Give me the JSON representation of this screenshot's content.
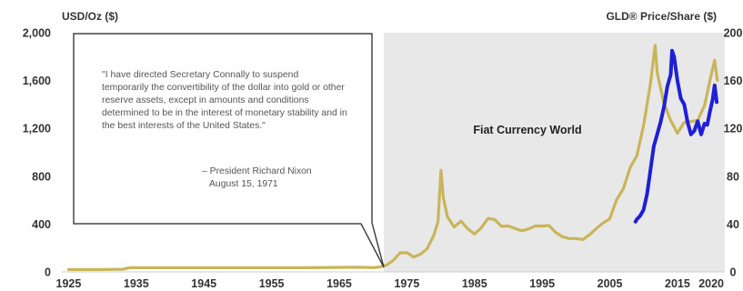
{
  "colors": {
    "gold": "#c9b55a",
    "gld": "#1f1fd6",
    "shade": "#e8e8e8",
    "box_border": "#3a3a3a",
    "text": "#333333"
  },
  "quote": {
    "text": "\"I have directed Secretary Connally to suspend temporarily the convertibility of the dollar into gold or other reserve assets, except in amounts and conditions determined to be in the interest of monetary stability and in the best interests of the United States.\"",
    "author": "– President Richard Nixon",
    "date": "August 15, 1971"
  },
  "chart_data": {
    "type": "line",
    "ylabel_left": "USD/Oz ($)",
    "ylabel_right": "GLD® Price/Share ($)",
    "xlim": [
      1924,
      2022
    ],
    "ylim": [
      0,
      2000
    ],
    "ylim_right": [
      0,
      200
    ],
    "x_ticks": [
      1925,
      1935,
      1945,
      1955,
      1965,
      1975,
      1985,
      1995,
      2005,
      2015,
      2020
    ],
    "y_ticks_left": [
      "0",
      "400",
      "800",
      "1,200",
      "1,600",
      "2,000"
    ],
    "y_ticks_right": [
      "0",
      "40",
      "80",
      "120",
      "160",
      "200"
    ],
    "annotation": "Fiat Currency World",
    "shaded_region": [
      1971.6,
      2022
    ],
    "series": [
      {
        "color": "gold",
        "points": [
          [
            1925,
            20
          ],
          [
            1930,
            20
          ],
          [
            1933,
            22
          ],
          [
            1934,
            35
          ],
          [
            1940,
            35
          ],
          [
            1950,
            35
          ],
          [
            1960,
            35
          ],
          [
            1968,
            39
          ],
          [
            1970,
            36
          ],
          [
            1971,
            41
          ],
          [
            1972,
            58
          ],
          [
            1973,
            97
          ],
          [
            1974,
            159
          ],
          [
            1975,
            161
          ],
          [
            1976,
            125
          ],
          [
            1977,
            148
          ],
          [
            1978,
            193
          ],
          [
            1979,
            307
          ],
          [
            1979.6,
            420
          ],
          [
            1980.05,
            850
          ],
          [
            1980.4,
            620
          ],
          [
            1981,
            460
          ],
          [
            1982,
            376
          ],
          [
            1983,
            424
          ],
          [
            1984,
            361
          ],
          [
            1985,
            317
          ],
          [
            1986,
            368
          ],
          [
            1987,
            447
          ],
          [
            1988,
            437
          ],
          [
            1989,
            381
          ],
          [
            1990,
            384
          ],
          [
            1991,
            362
          ],
          [
            1992,
            344
          ],
          [
            1993,
            360
          ],
          [
            1994,
            384
          ],
          [
            1995,
            384
          ],
          [
            1996,
            388
          ],
          [
            1997,
            331
          ],
          [
            1998,
            294
          ],
          [
            1999,
            279
          ],
          [
            2000,
            279
          ],
          [
            2001,
            271
          ],
          [
            2002,
            310
          ],
          [
            2003,
            363
          ],
          [
            2004,
            409
          ],
          [
            2005,
            444
          ],
          [
            2006,
            603
          ],
          [
            2007,
            695
          ],
          [
            2008,
            872
          ],
          [
            2009,
            972
          ],
          [
            2010,
            1225
          ],
          [
            2011,
            1572
          ],
          [
            2011.7,
            1895
          ],
          [
            2012,
            1669
          ],
          [
            2013,
            1411
          ],
          [
            2014,
            1266
          ],
          [
            2015,
            1160
          ],
          [
            2016,
            1251
          ],
          [
            2017,
            1257
          ],
          [
            2018,
            1268
          ],
          [
            2019,
            1392
          ],
          [
            2019.8,
            1600
          ],
          [
            2020.5,
            1770
          ],
          [
            2020.9,
            1600
          ]
        ]
      },
      {
        "color": "gld",
        "points": [
          [
            2008.8,
            420
          ],
          [
            2009,
            440
          ],
          [
            2009.5,
            470
          ],
          [
            2010,
            520
          ],
          [
            2010.5,
            650
          ],
          [
            2011,
            850
          ],
          [
            2011.5,
            1050
          ],
          [
            2012,
            1150
          ],
          [
            2012.5,
            1250
          ],
          [
            2013,
            1380
          ],
          [
            2013.5,
            1550
          ],
          [
            2014,
            1650
          ],
          [
            2014.2,
            1850
          ],
          [
            2014.5,
            1800
          ],
          [
            2015,
            1600
          ],
          [
            2015.5,
            1450
          ],
          [
            2016,
            1400
          ],
          [
            2016.5,
            1250
          ],
          [
            2017,
            1150
          ],
          [
            2017.5,
            1180
          ],
          [
            2018,
            1260
          ],
          [
            2018.5,
            1150
          ],
          [
            2019,
            1240
          ],
          [
            2019.4,
            1230
          ],
          [
            2019.8,
            1340
          ],
          [
            2020.2,
            1440
          ],
          [
            2020.5,
            1560
          ],
          [
            2020.8,
            1420
          ]
        ]
      }
    ]
  }
}
